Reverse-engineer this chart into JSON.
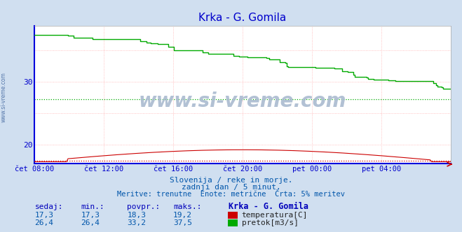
{
  "title": "Krka - G. Gomila",
  "title_color": "#0000cc",
  "bg_color": "#d0dff0",
  "plot_bg_color": "#ffffff",
  "grid_color": "#ffb0b0",
  "border_color": "#0000dd",
  "xlabel_ticks": [
    "čet 08:00",
    "čet 12:00",
    "čet 16:00",
    "čet 20:00",
    "pet 00:00",
    "pet 04:00"
  ],
  "ylabel_range": [
    17.0,
    39.0
  ],
  "yticks": [
    20,
    30
  ],
  "watermark": "www.si-vreme.com",
  "subtitle1": "Slovenija / reke in morje.",
  "subtitle2": "zadnji dan / 5 minut.",
  "subtitle3": "Meritve: trenutne  Enote: metrične  Črta: 5% meritev",
  "subtitle_color": "#0055aa",
  "table_header": [
    "sedaj:",
    "min.:",
    "povpr.:",
    "maks.:",
    "Krka - G. Gomila"
  ],
  "table_row1": [
    "17,3",
    "17,3",
    "18,3",
    "19,2",
    "temperatura[C]"
  ],
  "table_row2": [
    "26,4",
    "26,4",
    "33,2",
    "37,5",
    "pretok[m3/s]"
  ],
  "temp_color": "#cc0000",
  "flow_color": "#00aa00",
  "axis_label_color": "#0000cc",
  "n_points": 288,
  "temp_min": 17.3,
  "temp_max": 19.2,
  "temp_avg": 18.3,
  "temp_current": 17.3,
  "flow_min": 26.4,
  "flow_max": 37.5,
  "flow_avg": 33.2,
  "flow_current": 26.4,
  "temp_5pct": 17.4,
  "flow_5pct": 27.2
}
